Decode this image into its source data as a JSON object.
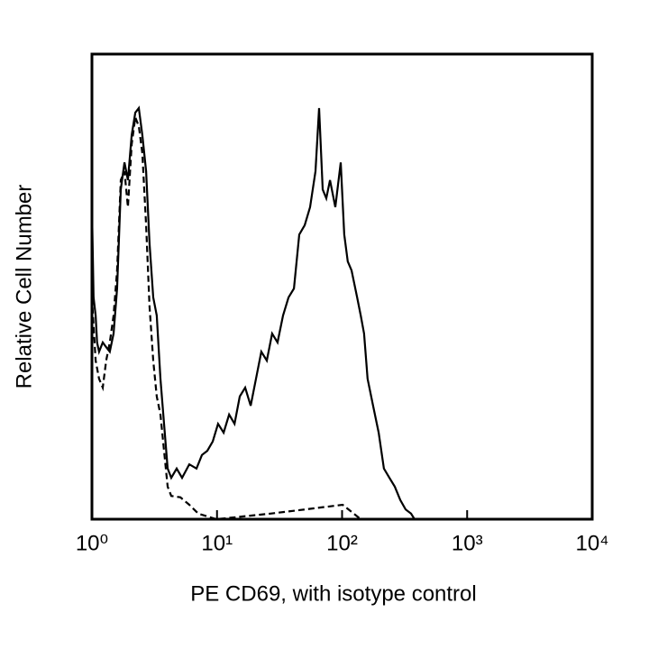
{
  "chart_data": {
    "type": "line",
    "x_label": "PE CD69, with isotype control",
    "y_label": "Relative Cell Number",
    "log_x": true,
    "xlim": [
      1,
      10000
    ],
    "xticks": [
      {
        "value": 1,
        "label": "10⁰"
      },
      {
        "value": 10,
        "label": "10¹"
      },
      {
        "value": 100,
        "label": "10²"
      },
      {
        "value": 1000,
        "label": "10³"
      },
      {
        "value": 10000,
        "label": "10⁴"
      }
    ],
    "ylim": [
      0,
      100
    ],
    "series": [
      {
        "line_style": "solid",
        "color": "#000000",
        "x": [
          1,
          1.03,
          1.07,
          1.1,
          1.14,
          1.22,
          1.3,
          1.39,
          1.49,
          1.59,
          1.7,
          1.82,
          1.94,
          2.08,
          2.22,
          2.37,
          2.53,
          2.71,
          2.89,
          3.09,
          3.3,
          3.53,
          3.77,
          4.03,
          4.31,
          4.76,
          5.26,
          6.0,
          6.86,
          7.57,
          8.37,
          9.24,
          10.2,
          11.3,
          12.5,
          13.8,
          15.2,
          16.8,
          18.6,
          20.5,
          22.6,
          25.0,
          27.6,
          30.5,
          33.7,
          37.3,
          41.2,
          45.5,
          50.2,
          55.5,
          61.3,
          65.5,
          70.0,
          74.8,
          80.0,
          88.3,
          97.5,
          104,
          111,
          119,
          132,
          141,
          150,
          160,
          177,
          196,
          216,
          239,
          264,
          292,
          322,
          356,
          380
        ],
        "values": [
          67.1,
          47.7,
          43.8,
          38.0,
          36.0,
          38.0,
          37.0,
          36.0,
          39.9,
          49.6,
          70.9,
          76.7,
          72.9,
          82.6,
          87.4,
          88.4,
          82.6,
          74.8,
          59.3,
          47.7,
          43.8,
          30.2,
          20.5,
          10.9,
          8.9,
          10.9,
          8.9,
          11.8,
          10.9,
          13.8,
          14.7,
          16.7,
          20.5,
          18.6,
          22.5,
          20.5,
          26.4,
          28.3,
          24.4,
          30.2,
          36.0,
          34.1,
          39.9,
          38.0,
          43.8,
          47.7,
          49.6,
          61.2,
          63.2,
          67.1,
          74.8,
          88.4,
          70.9,
          69.0,
          72.9,
          67.1,
          76.7,
          61.2,
          55.4,
          53.5,
          47.7,
          43.8,
          39.9,
          30.2,
          24.4,
          18.6,
          10.9,
          8.9,
          7.0,
          4.1,
          2.1,
          1.2,
          0
        ]
      },
      {
        "line_style": "dashed",
        "color": "#000000",
        "x": [
          1,
          1.07,
          1.14,
          1.22,
          1.3,
          1.39,
          1.49,
          1.59,
          1.7,
          1.82,
          1.94,
          2.08,
          2.22,
          2.37,
          2.53,
          2.71,
          2.89,
          3.09,
          3.3,
          3.53,
          3.77,
          4.03,
          4.31,
          5.09,
          6.0,
          7.09,
          9.88,
          26.7,
          44.0,
          101,
          141
        ],
        "values": [
          47.7,
          34.1,
          30.2,
          28.3,
          34.1,
          38.0,
          43.8,
          53.5,
          72.9,
          74.8,
          67.1,
          80.6,
          86.4,
          84.5,
          78.7,
          63.2,
          45.7,
          34.1,
          26.4,
          22.5,
          14.7,
          7.0,
          5.0,
          4.7,
          3.1,
          1.2,
          0,
          1.2,
          1.9,
          3.1,
          0
        ]
      }
    ]
  }
}
